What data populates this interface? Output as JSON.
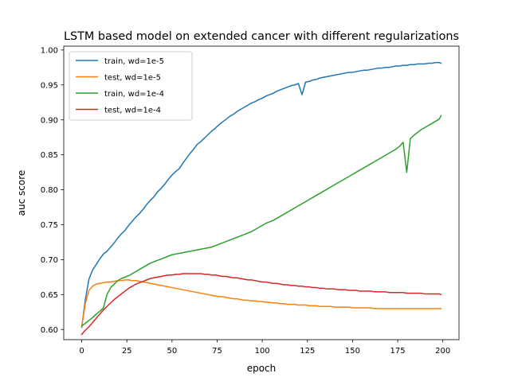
{
  "chart_data": {
    "type": "line",
    "title": "LSTM based model on extended cancer with different regularizations",
    "xlabel": "epoch",
    "ylabel": "auc score",
    "xlim": [
      -9.95,
      208.95
    ],
    "ylim": [
      0.5855,
      1.0055
    ],
    "x_ticks": [
      0,
      25,
      50,
      75,
      100,
      125,
      150,
      175,
      200
    ],
    "x_tick_labels": [
      "0",
      "25",
      "50",
      "75",
      "100",
      "125",
      "150",
      "175",
      "200"
    ],
    "y_ticks": [
      0.6,
      0.65,
      0.7,
      0.75,
      0.8,
      0.85,
      0.9,
      0.95,
      1.0
    ],
    "y_tick_labels": [
      "0.60",
      "0.65",
      "0.70",
      "0.75",
      "0.80",
      "0.85",
      "0.90",
      "0.95",
      "1.00"
    ],
    "grid": false,
    "legend_position": "upper-left",
    "x": [
      0,
      2,
      4,
      6,
      8,
      10,
      12,
      14,
      16,
      18,
      20,
      22,
      24,
      26,
      28,
      30,
      32,
      34,
      36,
      38,
      40,
      42,
      44,
      46,
      48,
      50,
      52,
      54,
      56,
      58,
      60,
      62,
      64,
      66,
      68,
      70,
      72,
      74,
      76,
      78,
      80,
      82,
      84,
      86,
      88,
      90,
      92,
      94,
      96,
      98,
      100,
      102,
      104,
      106,
      108,
      110,
      112,
      114,
      116,
      118,
      120,
      122,
      124,
      126,
      128,
      130,
      132,
      134,
      136,
      138,
      140,
      142,
      144,
      146,
      148,
      150,
      152,
      154,
      156,
      158,
      160,
      162,
      164,
      166,
      168,
      170,
      172,
      174,
      176,
      178,
      180,
      182,
      184,
      186,
      188,
      190,
      192,
      194,
      196,
      198,
      199
    ],
    "series": [
      {
        "name": "train, wd=1e-5",
        "color": "#1f77b4",
        "values": [
          0.603,
          0.643,
          0.672,
          0.685,
          0.693,
          0.701,
          0.708,
          0.712,
          0.718,
          0.724,
          0.731,
          0.737,
          0.742,
          0.749,
          0.755,
          0.761,
          0.766,
          0.772,
          0.779,
          0.785,
          0.79,
          0.797,
          0.802,
          0.808,
          0.815,
          0.821,
          0.826,
          0.83,
          0.838,
          0.845,
          0.852,
          0.858,
          0.865,
          0.869,
          0.874,
          0.879,
          0.884,
          0.888,
          0.893,
          0.897,
          0.901,
          0.905,
          0.908,
          0.912,
          0.915,
          0.918,
          0.921,
          0.924,
          0.926,
          0.929,
          0.931,
          0.934,
          0.936,
          0.938,
          0.941,
          0.943,
          0.945,
          0.947,
          0.949,
          0.95,
          0.952,
          0.936,
          0.954,
          0.955,
          0.957,
          0.958,
          0.96,
          0.961,
          0.962,
          0.963,
          0.964,
          0.965,
          0.966,
          0.967,
          0.968,
          0.968,
          0.969,
          0.97,
          0.971,
          0.971,
          0.972,
          0.973,
          0.974,
          0.974,
          0.975,
          0.975,
          0.976,
          0.977,
          0.977,
          0.978,
          0.978,
          0.979,
          0.979,
          0.98,
          0.98,
          0.98,
          0.981,
          0.981,
          0.982,
          0.982,
          0.981
        ]
      },
      {
        "name": "test, wd=1e-5",
        "color": "#ff7f0e",
        "values": [
          0.604,
          0.637,
          0.656,
          0.662,
          0.665,
          0.666,
          0.667,
          0.668,
          0.668,
          0.669,
          0.67,
          0.67,
          0.671,
          0.671,
          0.67,
          0.67,
          0.669,
          0.668,
          0.667,
          0.666,
          0.665,
          0.664,
          0.663,
          0.662,
          0.661,
          0.66,
          0.659,
          0.658,
          0.657,
          0.656,
          0.655,
          0.654,
          0.653,
          0.652,
          0.651,
          0.65,
          0.649,
          0.648,
          0.647,
          0.647,
          0.646,
          0.645,
          0.644,
          0.644,
          0.643,
          0.642,
          0.642,
          0.641,
          0.641,
          0.64,
          0.64,
          0.639,
          0.639,
          0.638,
          0.638,
          0.637,
          0.637,
          0.636,
          0.636,
          0.636,
          0.635,
          0.635,
          0.635,
          0.634,
          0.634,
          0.634,
          0.633,
          0.633,
          0.633,
          0.633,
          0.632,
          0.632,
          0.632,
          0.632,
          0.632,
          0.631,
          0.631,
          0.631,
          0.631,
          0.631,
          0.631,
          0.63,
          0.63,
          0.63,
          0.63,
          0.63,
          0.63,
          0.63,
          0.63,
          0.63,
          0.63,
          0.63,
          0.63,
          0.63,
          0.63,
          0.63,
          0.63,
          0.63,
          0.63,
          0.63,
          0.63
        ]
      },
      {
        "name": "train, wd=1e-4",
        "color": "#2ca02c",
        "values": [
          0.605,
          0.609,
          0.613,
          0.617,
          0.622,
          0.626,
          0.631,
          0.65,
          0.66,
          0.665,
          0.67,
          0.673,
          0.675,
          0.677,
          0.68,
          0.683,
          0.686,
          0.689,
          0.692,
          0.695,
          0.697,
          0.699,
          0.701,
          0.703,
          0.705,
          0.707,
          0.708,
          0.709,
          0.71,
          0.711,
          0.712,
          0.713,
          0.714,
          0.715,
          0.716,
          0.717,
          0.718,
          0.72,
          0.722,
          0.724,
          0.726,
          0.728,
          0.73,
          0.732,
          0.734,
          0.736,
          0.738,
          0.74,
          0.743,
          0.746,
          0.749,
          0.752,
          0.754,
          0.756,
          0.759,
          0.762,
          0.765,
          0.768,
          0.771,
          0.774,
          0.777,
          0.78,
          0.783,
          0.786,
          0.789,
          0.792,
          0.795,
          0.798,
          0.801,
          0.804,
          0.807,
          0.81,
          0.813,
          0.816,
          0.819,
          0.822,
          0.825,
          0.828,
          0.831,
          0.834,
          0.837,
          0.84,
          0.843,
          0.846,
          0.849,
          0.852,
          0.855,
          0.858,
          0.862,
          0.868,
          0.825,
          0.873,
          0.878,
          0.882,
          0.886,
          0.889,
          0.892,
          0.895,
          0.898,
          0.901,
          0.906
        ]
      },
      {
        "name": "test, wd=1e-4",
        "color": "#d62728",
        "values": [
          0.593,
          0.599,
          0.604,
          0.61,
          0.616,
          0.622,
          0.628,
          0.633,
          0.638,
          0.643,
          0.647,
          0.651,
          0.655,
          0.659,
          0.662,
          0.665,
          0.667,
          0.669,
          0.671,
          0.673,
          0.674,
          0.675,
          0.676,
          0.677,
          0.678,
          0.678,
          0.679,
          0.679,
          0.68,
          0.68,
          0.68,
          0.68,
          0.68,
          0.68,
          0.679,
          0.679,
          0.678,
          0.678,
          0.677,
          0.676,
          0.676,
          0.675,
          0.674,
          0.674,
          0.673,
          0.672,
          0.671,
          0.671,
          0.67,
          0.669,
          0.668,
          0.668,
          0.667,
          0.666,
          0.666,
          0.665,
          0.664,
          0.664,
          0.663,
          0.663,
          0.662,
          0.662,
          0.661,
          0.661,
          0.66,
          0.66,
          0.659,
          0.659,
          0.658,
          0.658,
          0.658,
          0.657,
          0.657,
          0.657,
          0.656,
          0.656,
          0.656,
          0.655,
          0.655,
          0.655,
          0.655,
          0.654,
          0.654,
          0.654,
          0.654,
          0.653,
          0.653,
          0.653,
          0.653,
          0.653,
          0.652,
          0.652,
          0.652,
          0.652,
          0.652,
          0.651,
          0.651,
          0.651,
          0.651,
          0.651,
          0.65
        ]
      }
    ]
  }
}
